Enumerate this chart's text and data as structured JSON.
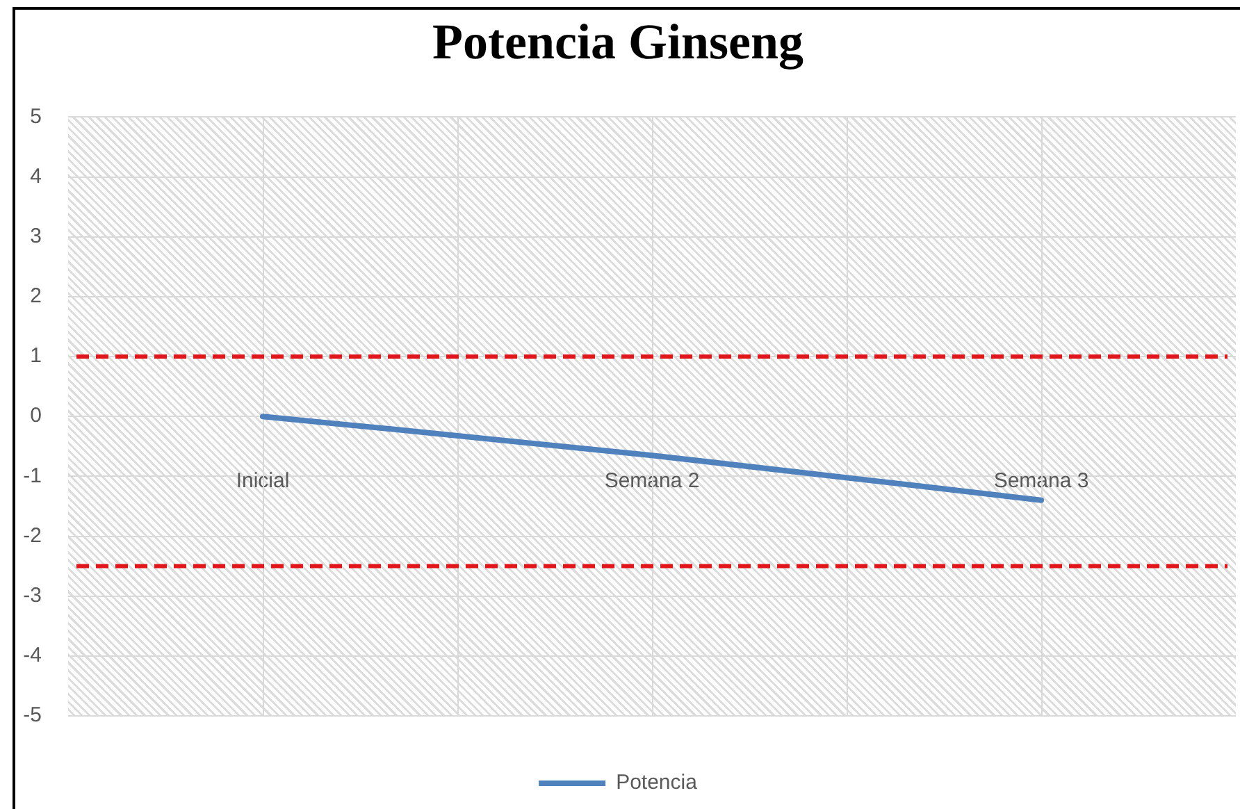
{
  "chart_data": {
    "type": "line",
    "title": "Potencia Ginseng",
    "categories": [
      "Inicial",
      "Semana 2",
      "Semana 3"
    ],
    "series": [
      {
        "name": "Potencia",
        "color": "#4f81bd",
        "values": [
          0,
          -0.65,
          -1.4
        ]
      }
    ],
    "ylim": [
      -5,
      5
    ],
    "yticks": [
      -5,
      -4,
      -3,
      -2,
      -1,
      0,
      1,
      2,
      3,
      4,
      5
    ],
    "grid": true,
    "legend": "bottom",
    "marker": "none",
    "line_style": "solid",
    "ref_lines": [
      {
        "axis": "y",
        "value": 1,
        "color": "#e0161b",
        "line_style": "dashed"
      },
      {
        "axis": "y",
        "value": -2.5,
        "color": "#e0161b",
        "line_style": "dashed"
      }
    ]
  }
}
